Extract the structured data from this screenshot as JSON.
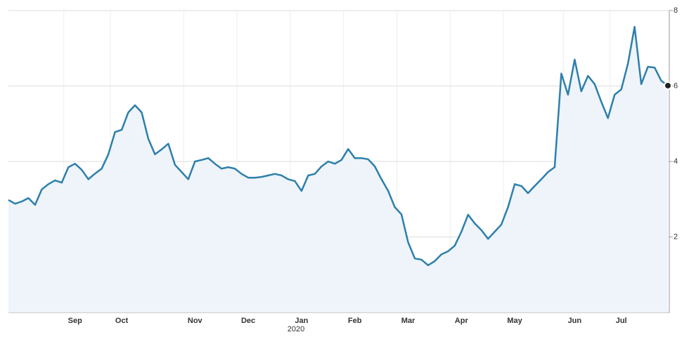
{
  "chart_data": {
    "type": "area",
    "categories": [
      null,
      null,
      null,
      null,
      null,
      null,
      null,
      null,
      null,
      null,
      "Sep",
      null,
      null,
      null,
      null,
      null,
      null,
      "Oct",
      null,
      null,
      null,
      null,
      null,
      null,
      null,
      null,
      null,
      null,
      "Nov",
      null,
      null,
      null,
      null,
      null,
      null,
      null,
      "Dec",
      null,
      null,
      null,
      null,
      null,
      null,
      null,
      "Jan",
      null,
      null,
      null,
      null,
      null,
      null,
      null,
      "Feb",
      null,
      null,
      null,
      null,
      null,
      null,
      null,
      "Mar",
      null,
      null,
      null,
      null,
      null,
      null,
      null,
      "Apr",
      null,
      null,
      null,
      null,
      null,
      null,
      null,
      "May",
      null,
      null,
      null,
      null,
      null,
      null,
      null,
      null,
      "Jun",
      null,
      null,
      null,
      null,
      null,
      null,
      "Jul",
      null,
      null,
      null,
      null,
      null,
      null,
      null
    ],
    "values": [
      2.98,
      2.88,
      2.94,
      3.03,
      2.85,
      3.26,
      3.4,
      3.5,
      3.44,
      3.85,
      3.94,
      3.78,
      3.53,
      3.68,
      3.81,
      4.19,
      4.78,
      4.84,
      5.3,
      5.49,
      5.3,
      4.6,
      4.19,
      4.32,
      4.47,
      3.91,
      3.72,
      3.53,
      4.0,
      4.04,
      4.09,
      3.94,
      3.81,
      3.85,
      3.81,
      3.67,
      3.57,
      3.57,
      3.59,
      3.63,
      3.67,
      3.63,
      3.53,
      3.48,
      3.22,
      3.63,
      3.67,
      3.87,
      4.0,
      3.94,
      4.04,
      4.33,
      4.09,
      4.09,
      4.06,
      3.87,
      3.53,
      3.22,
      2.79,
      2.6,
      1.86,
      1.43,
      1.4,
      1.25,
      1.36,
      1.54,
      1.62,
      1.77,
      2.14,
      2.59,
      2.36,
      2.18,
      1.95,
      2.14,
      2.33,
      2.79,
      3.4,
      3.35,
      3.16,
      3.35,
      3.53,
      3.72,
      3.85,
      6.33,
      5.77,
      6.7,
      5.86,
      6.27,
      6.05,
      5.58,
      5.15,
      5.77,
      5.91,
      6.6,
      7.57,
      6.05,
      6.51,
      6.49,
      6.14,
      6.01
    ],
    "color": "#2d7fab",
    "fill": "#eef4f9",
    "ylim": [
      0,
      8
    ],
    "yticks": [
      2,
      4,
      6,
      8
    ],
    "grid": true,
    "annotation": "2020"
  }
}
